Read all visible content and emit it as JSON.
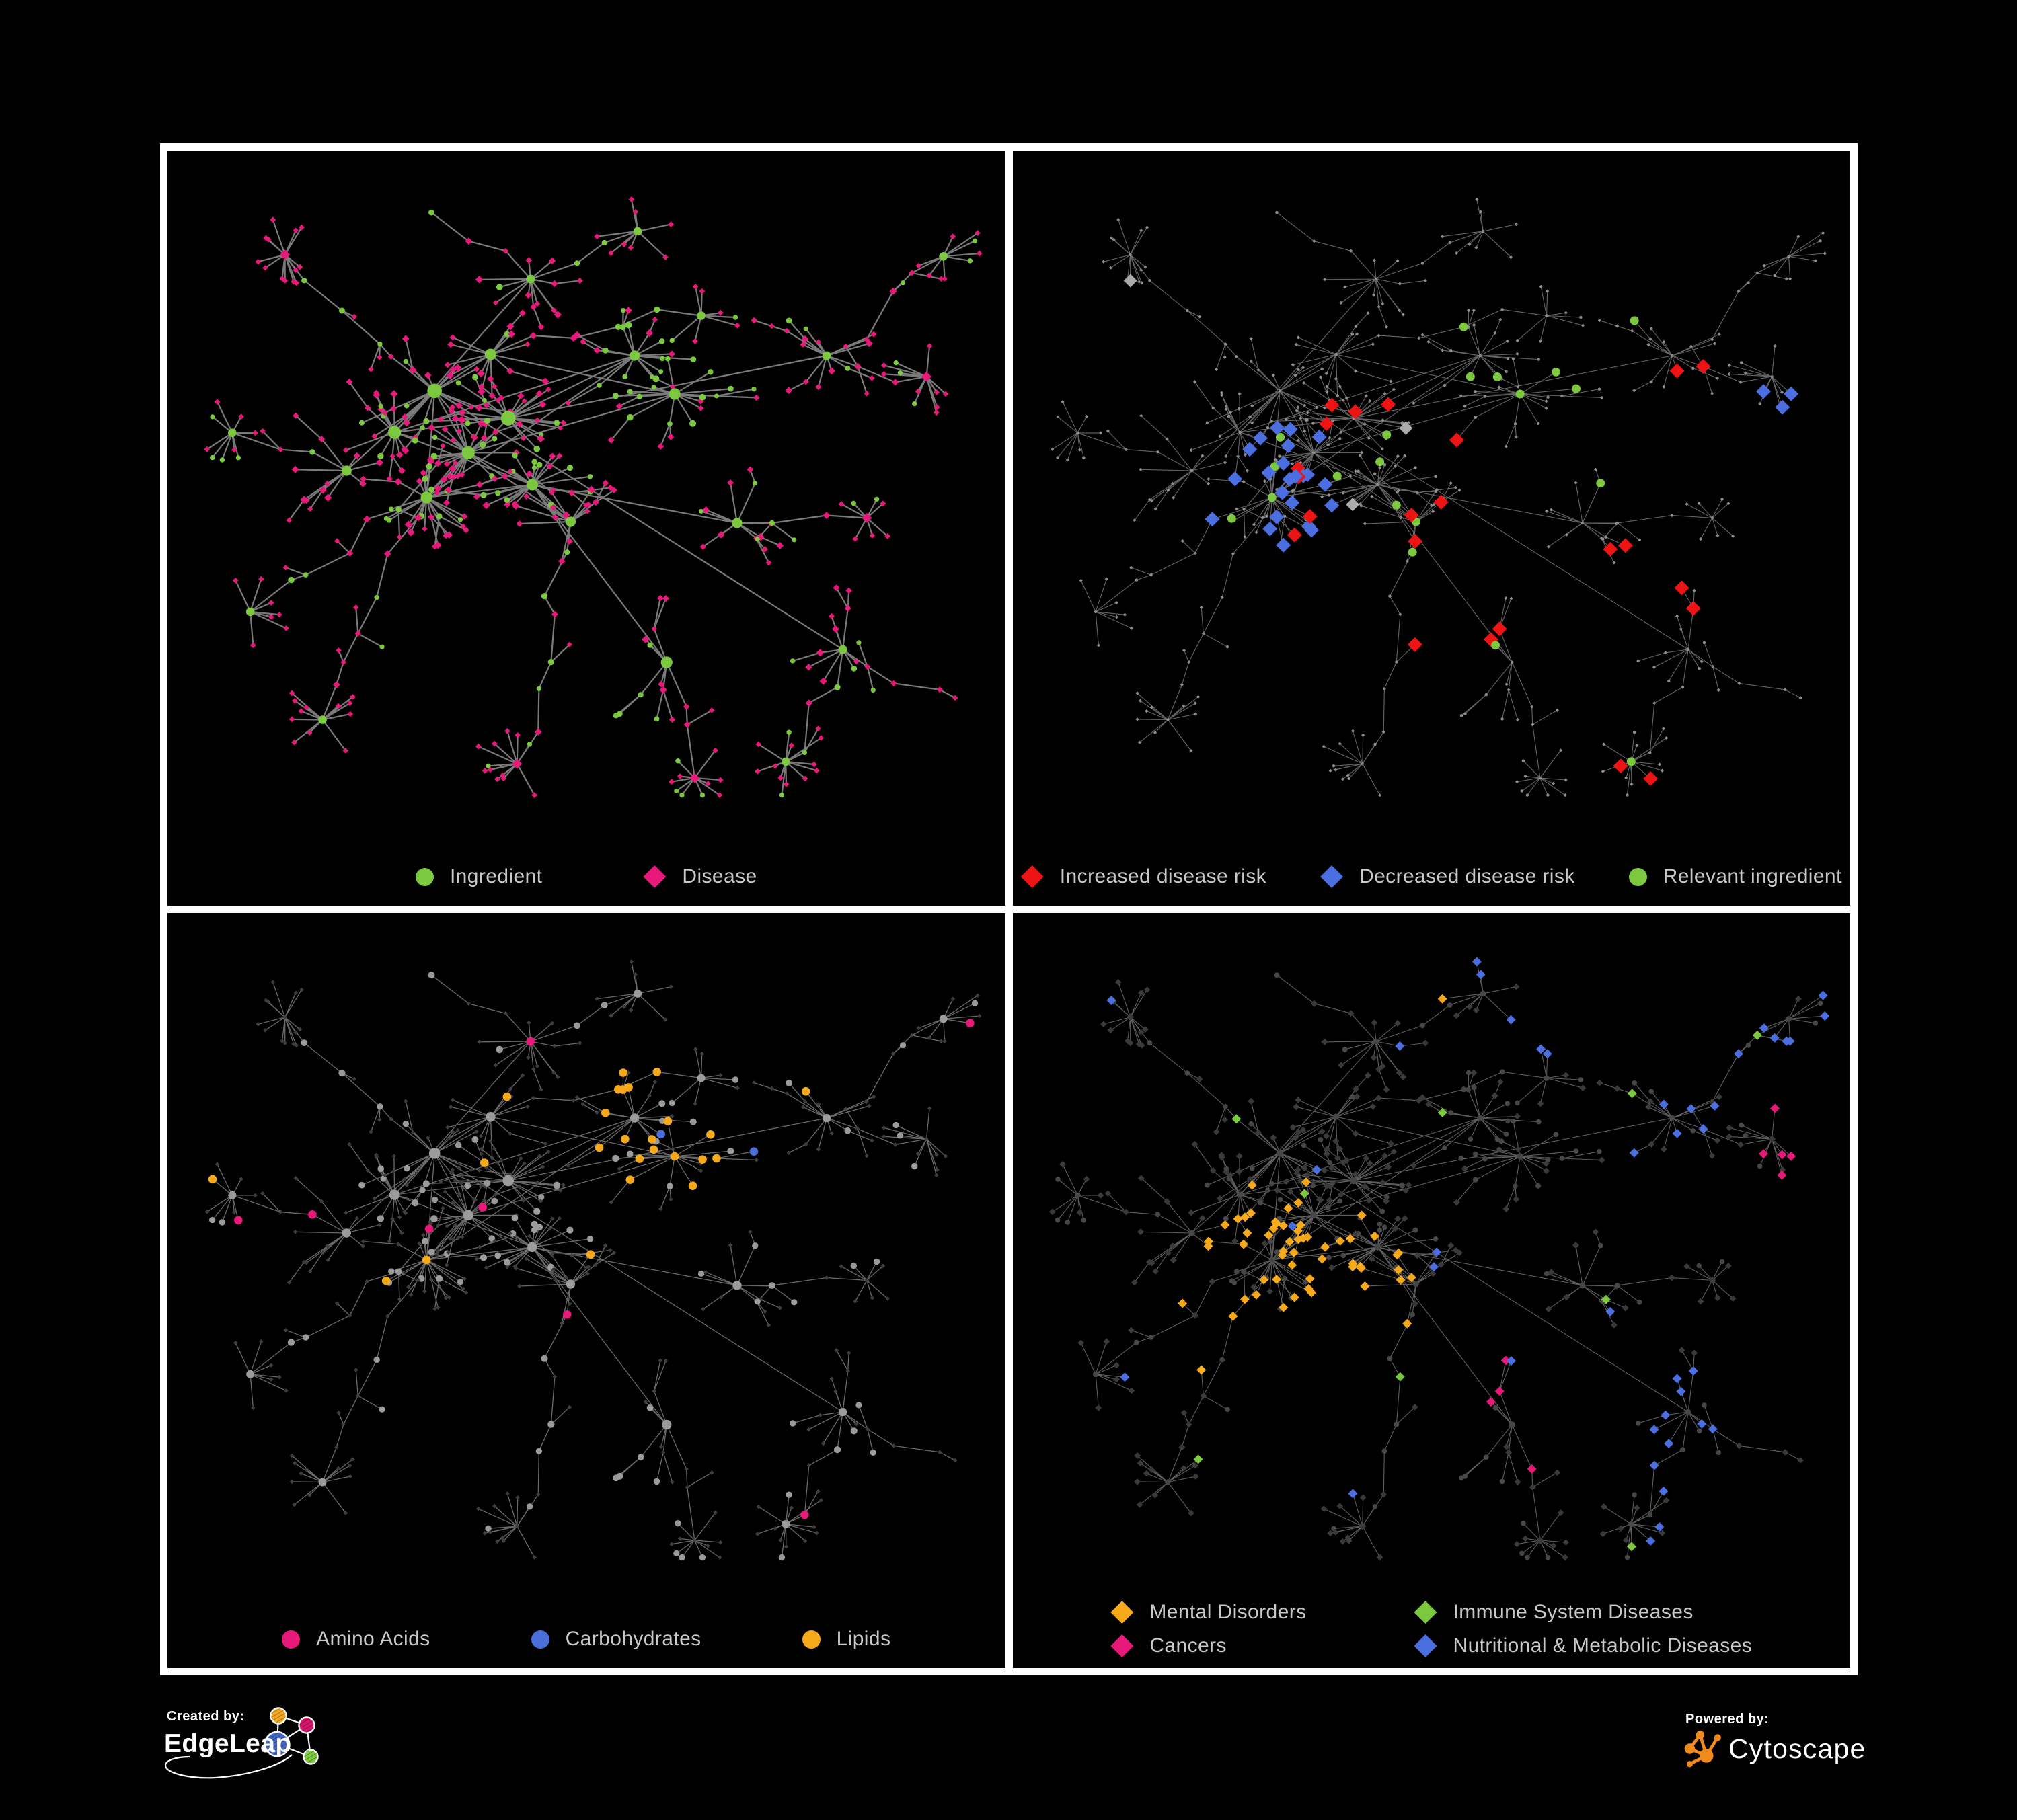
{
  "figure": {
    "background": "#000000",
    "panel_border_color": "#ffffff",
    "legend_text_color": "#c9c9c9"
  },
  "panels": [
    {
      "name": "ingredient-disease-network",
      "legend": [
        {
          "label": "Ingredient",
          "shape": "circle",
          "color": "#7CC83F"
        },
        {
          "label": "Disease",
          "shape": "diamond",
          "color": "#E8197B"
        }
      ],
      "style": {
        "edge": "#7a7a7a",
        "edgeW": 2.2,
        "ingredient": "#7CC83F",
        "disease": "#E8197B"
      }
    },
    {
      "name": "disease-risk-network",
      "legend": [
        {
          "label": "Increased disease risk",
          "shape": "diamond",
          "color": "#EE1414"
        },
        {
          "label": "Decreased disease risk",
          "shape": "diamond",
          "color": "#4B6FE0"
        },
        {
          "label": "Relevant ingredient",
          "shape": "circle",
          "color": "#7CC83F"
        }
      ],
      "style": {
        "edge": "#656565",
        "edgeW": 1.1,
        "node": "#8E8E8E",
        "increased": "#EE1414",
        "decreased": "#4B6FE0",
        "neutral": "#ABABAB",
        "relevant": "#7CC83F"
      }
    },
    {
      "name": "nutrient-class-network",
      "legend": [
        {
          "label": "Amino Acids",
          "shape": "circle",
          "color": "#E8197B"
        },
        {
          "label": "Carbohydrates",
          "shape": "circle",
          "color": "#4B6FD8"
        },
        {
          "label": "Lipids",
          "shape": "circle",
          "color": "#F7A91C"
        }
      ],
      "style": {
        "edge": "#6a6a6a",
        "edgeW": 1.3,
        "circle": "#9B9B9B",
        "diamond": "#3E3E3E",
        "amino": "#E8197B",
        "carb": "#4B6FD8",
        "lipid": "#F7A91C"
      }
    },
    {
      "name": "disease-category-network",
      "legend": [
        {
          "label": "Mental Disorders",
          "shape": "diamond",
          "color": "#F7A91C"
        },
        {
          "label": "Immune System Diseases",
          "shape": "diamond",
          "color": "#7CC83F"
        },
        {
          "label": "Cancers",
          "shape": "diamond",
          "color": "#E8197B"
        },
        {
          "label": "Nutritional & Metabolic Diseases",
          "shape": "diamond",
          "color": "#4B6FE0"
        }
      ],
      "style": {
        "edge": "#5f5f5f",
        "edgeW": 1.1,
        "circle": "#474747",
        "diamond": "#3A3A3A",
        "mental": "#F7A91C",
        "immune": "#7CC83F",
        "cancer": "#E8197B",
        "nutritional": "#4B6FE0"
      }
    }
  ],
  "footer": {
    "created_by_label": "Created by:",
    "created_by_name": "EdgeLeap",
    "powered_by_label": "Powered by:",
    "powered_by_name": "Cytoscape",
    "edgeleap_colors": {
      "blue": "#4467C4",
      "orange": "#F5A623",
      "pink": "#D6156C",
      "green": "#7CC83F",
      "outline": "#ffffff"
    },
    "cytoscape_color": "#F08A1D"
  }
}
